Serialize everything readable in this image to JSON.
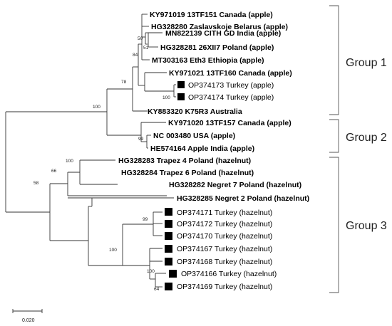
{
  "taxa": [
    {
      "label": "KY971019 13TF151 Canada (apple)",
      "bold": true,
      "marker": false
    },
    {
      "label": "HG328280 Zaslavskoje Belarus (apple)",
      "bold": true,
      "marker": false
    },
    {
      "label": "MN822139 CITH GD India (apple)",
      "bold": true,
      "marker": false
    },
    {
      "label": "HG328281 26XII7 Poland (apple)",
      "bold": true,
      "marker": false
    },
    {
      "label": "MT303163 Eth3 Ethiopia (apple)",
      "bold": true,
      "marker": false
    },
    {
      "label": "KY971021 13TF160 Canada (apple)",
      "bold": true,
      "marker": false
    },
    {
      "label": "OP374173 Turkey (apple)",
      "bold": false,
      "marker": true
    },
    {
      "label": "OP374174 Turkey (apple)",
      "bold": false,
      "marker": true
    },
    {
      "label": "KY883320 K75R3 Australia",
      "bold": true,
      "marker": false
    },
    {
      "label": "KY971020 13TF157 Canada (apple)",
      "bold": true,
      "marker": false
    },
    {
      "label": "NC 003480 USA (apple)",
      "bold": true,
      "marker": false
    },
    {
      "label": "HE574164 Apple India (apple)",
      "bold": true,
      "marker": false
    },
    {
      "label": "HG328283 Trapez 4 Poland (hazelnut)",
      "bold": true,
      "marker": false
    },
    {
      "label": "HG328284 Trapez 6 Poland (hazelnut)",
      "bold": true,
      "marker": false
    },
    {
      "label": "HG328282 Negret 7 Poland (hazelnut)",
      "bold": true,
      "marker": false
    },
    {
      "label": "HG328285 Negret 2 Poland (hazelnut)",
      "bold": true,
      "marker": false
    },
    {
      "label": "OP374171 Turkey (hazelnut)",
      "bold": false,
      "marker": true
    },
    {
      "label": "OP374172 Turkey (hazelnut)",
      "bold": false,
      "marker": true
    },
    {
      "label": "OP374170 Turkey (hazelnut)",
      "bold": false,
      "marker": true
    },
    {
      "label": "OP374167 Turkey (hazelnut)",
      "bold": false,
      "marker": true
    },
    {
      "label": "OP374168 Turkey (hazelnut)",
      "bold": false,
      "marker": true
    },
    {
      "label": "OP374166 Turkey (hazelnut)",
      "bold": false,
      "marker": true
    },
    {
      "label": "OP374169 Turkey (hazelnut)",
      "bold": false,
      "marker": true
    }
  ],
  "support_values": [
    "50",
    "51",
    "84",
    "78",
    "100",
    "100",
    "99",
    "100",
    "66",
    "58",
    "99",
    "100",
    "100",
    "64"
  ],
  "groups": [
    "Group 1",
    "Group 2",
    "Group 3"
  ],
  "scale_bar": {
    "label": "0.020"
  }
}
